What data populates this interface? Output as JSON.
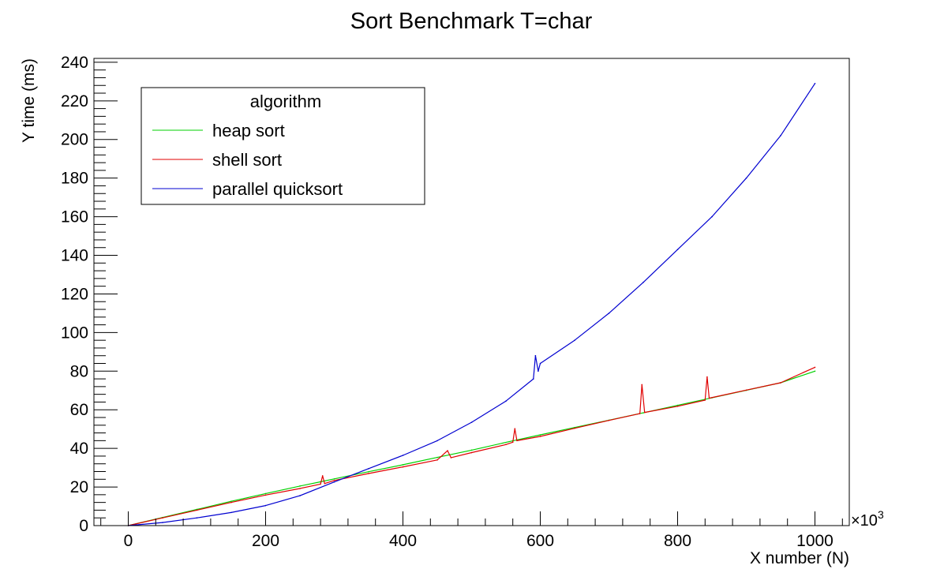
{
  "chart_data": {
    "type": "line",
    "title": "Sort Benchmark T=char",
    "xlabel": "X number (N)",
    "ylabel": "Y time (ms)",
    "x_multiplier_label": "×10",
    "x_multiplier_exp": "3",
    "xlim": [
      -50,
      1050
    ],
    "ylim": [
      0,
      242
    ],
    "x_ticks": [
      0,
      200,
      400,
      600,
      800,
      1000
    ],
    "y_ticks": [
      0,
      20,
      40,
      60,
      80,
      100,
      120,
      140,
      160,
      180,
      200,
      220,
      240
    ],
    "legend_position": "top-left",
    "legend_title": "algorithm",
    "grid": false,
    "series": [
      {
        "name": "heap sort",
        "color": "#00d000",
        "x": [
          0,
          50,
          100,
          150,
          200,
          250,
          280,
          300,
          350,
          400,
          450,
          500,
          560,
          600,
          650,
          700,
          750,
          800,
          850,
          900,
          950,
          1000
        ],
        "y": [
          0,
          4.2,
          8.4,
          12.6,
          16.6,
          20.5,
          22.7,
          24.2,
          27.9,
          31.5,
          35.3,
          39.1,
          43.9,
          47.0,
          50.8,
          54.6,
          58.4,
          62.3,
          66.2,
          70.1,
          74.0,
          80.0
        ]
      },
      {
        "name": "shell sort",
        "color": "#e00000",
        "x": [
          0,
          50,
          100,
          150,
          200,
          250,
          280,
          283,
          286,
          300,
          350,
          400,
          450,
          465,
          470,
          500,
          550,
          560,
          563,
          566,
          600,
          650,
          700,
          745,
          748,
          752,
          800,
          840,
          843,
          846,
          900,
          950,
          1000
        ],
        "y": [
          0,
          4.0,
          8.0,
          12.0,
          15.8,
          19.2,
          21.5,
          25.8,
          21.8,
          23.4,
          27.0,
          30.4,
          34.0,
          38.8,
          35.2,
          37.8,
          42.0,
          43.2,
          50.2,
          44.0,
          46.2,
          50.4,
          54.5,
          58.0,
          73.0,
          58.6,
          61.8,
          65.0,
          77.0,
          66.0,
          70.2,
          74.0,
          82.0
        ]
      },
      {
        "name": "parallel quicksort",
        "color": "#0000d0",
        "x": [
          0,
          50,
          100,
          150,
          200,
          250,
          300,
          350,
          400,
          450,
          500,
          550,
          590,
          593,
          597,
          600,
          650,
          700,
          750,
          800,
          850,
          900,
          950,
          1000
        ],
        "y": [
          0,
          1.6,
          4.0,
          6.8,
          10.4,
          15.5,
          22.6,
          29.5,
          36.4,
          44.0,
          53.5,
          64.5,
          76.0,
          88.0,
          80.0,
          84.0,
          96.0,
          110.0,
          126.0,
          143.0,
          160.0,
          180.0,
          202.0,
          229.0
        ]
      }
    ]
  }
}
